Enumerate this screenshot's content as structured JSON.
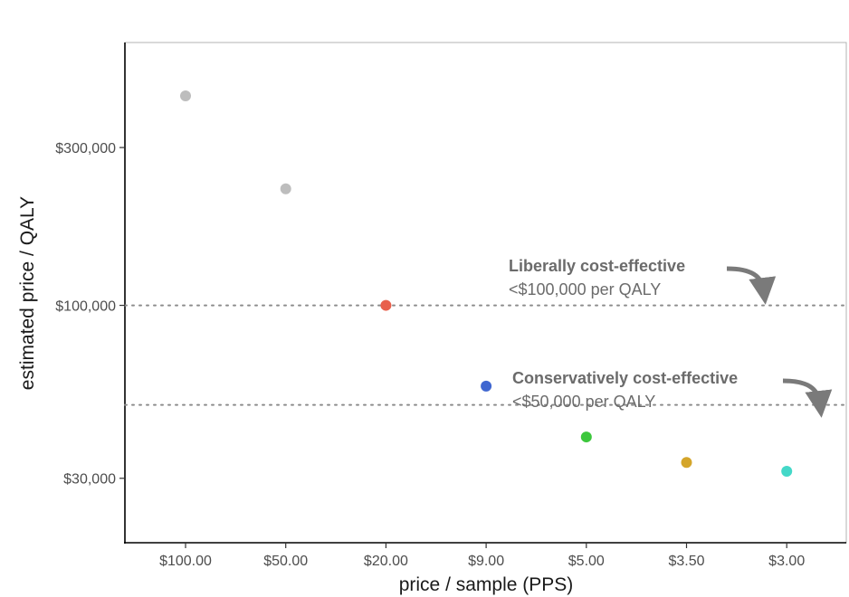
{
  "chart_data": {
    "type": "scatter",
    "title": "",
    "xlabel": "price / sample (PPS)",
    "ylabel": "estimated price / QALY",
    "y_scale": "log",
    "ylim": [
      22000,
      560000
    ],
    "x_categories": [
      "$100.00",
      "$50.00",
      "$20.00",
      "$9.00",
      "$5.00",
      "$3.50",
      "$3.00"
    ],
    "y_ticks": [
      {
        "value": 30000,
        "label": "$30,000"
      },
      {
        "value": 100000,
        "label": "$100,000"
      },
      {
        "value": 300000,
        "label": "$300,000"
      }
    ],
    "points": [
      {
        "x": "$100.00",
        "y": 430000,
        "color": "#bdbdbd"
      },
      {
        "x": "$50.00",
        "y": 225000,
        "color": "#bdbdbd"
      },
      {
        "x": "$20.00",
        "y": 100000,
        "color": "#e8604c"
      },
      {
        "x": "$9.00",
        "y": 57000,
        "color": "#3f66d0"
      },
      {
        "x": "$5.00",
        "y": 40000,
        "color": "#3cc73c"
      },
      {
        "x": "$3.50",
        "y": 33500,
        "color": "#d4a52a"
      },
      {
        "x": "$3.00",
        "y": 31500,
        "color": "#44d8c8"
      }
    ],
    "reference_lines": [
      {
        "value": 100000,
        "style": "dotted"
      },
      {
        "value": 50000,
        "style": "dotted"
      }
    ],
    "annotations": [
      {
        "title": "Liberally cost-effective",
        "subtitle": "<$100,000 per QALY"
      },
      {
        "title": "Conservatively cost-effective",
        "subtitle": "<$50,000 per QALY"
      }
    ],
    "grid": false
  }
}
